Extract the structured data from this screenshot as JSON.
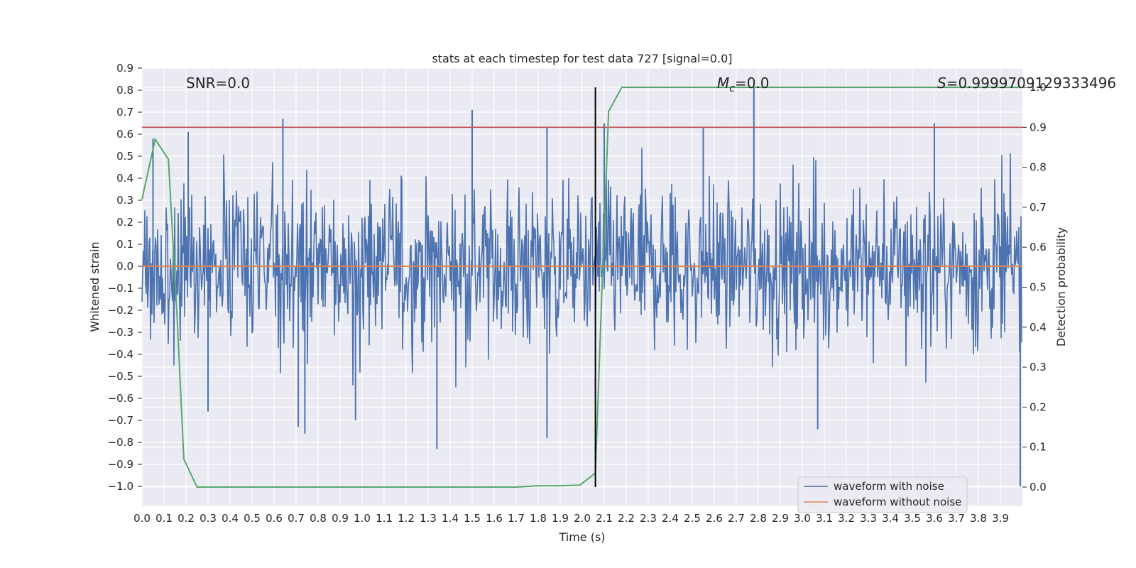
{
  "chart_data": {
    "type": "line",
    "title": "stats at each timestep for test data 727 [signal=0.0]",
    "xlabel": "Time (s)",
    "ylabel": "Whitened strain",
    "y2label": "Detection probability",
    "xlim": [
      0.0,
      4.0
    ],
    "ylim": [
      -1.1,
      0.9
    ],
    "y2lim": [
      -0.05,
      1.0
    ],
    "x_ticks": [
      "0.0",
      "0.1",
      "0.2",
      "0.3",
      "0.4",
      "0.5",
      "0.6",
      "0.7",
      "0.8",
      "0.9",
      "1.0",
      "1.1",
      "1.2",
      "1.3",
      "1.4",
      "1.5",
      "1.6",
      "1.7",
      "1.8",
      "1.9",
      "2.0",
      "2.1",
      "2.2",
      "2.3",
      "2.4",
      "2.5",
      "2.6",
      "2.7",
      "2.8",
      "2.9",
      "3.0",
      "3.1",
      "3.2",
      "3.3",
      "3.4",
      "3.5",
      "3.6",
      "3.7",
      "3.8",
      "3.9"
    ],
    "y_ticks": [
      "0.9",
      "0.8",
      "0.7",
      "0.6",
      "0.5",
      "0.4",
      "0.3",
      "0.2",
      "0.1",
      "0.0",
      "−0.1",
      "−0.2",
      "−0.3",
      "−0.4",
      "−0.5",
      "−0.6",
      "−0.7",
      "−0.8",
      "−0.9",
      "−1.0"
    ],
    "y2_ticks": [
      "1.0",
      "0.9",
      "0.8",
      "0.7",
      "0.6",
      "0.5",
      "0.4",
      "0.3",
      "0.2",
      "0.1",
      "0.0"
    ],
    "grid": true,
    "legend_position": "lower-right",
    "annotations": {
      "snr": "SNR=0.0",
      "mc_symbol": "M",
      "mc_sub": "c",
      "mc_value": "=0.0",
      "s_symbol": "S",
      "s_value": "=0.9999709129333496"
    },
    "noise_spikes": [
      {
        "x": 0.05,
        "y": 0.58
      },
      {
        "x": 0.21,
        "y": 0.61
      },
      {
        "x": 0.3,
        "y": -0.66
      },
      {
        "x": 0.64,
        "y": 0.67
      },
      {
        "x": 0.71,
        "y": -0.73
      },
      {
        "x": 0.74,
        "y": -0.76
      },
      {
        "x": 0.97,
        "y": -0.7
      },
      {
        "x": 1.34,
        "y": -0.83
      },
      {
        "x": 1.5,
        "y": 0.71
      },
      {
        "x": 1.84,
        "y": -0.78
      },
      {
        "x": 1.84,
        "y": 0.63
      },
      {
        "x": 2.1,
        "y": 0.65
      },
      {
        "x": 2.55,
        "y": 0.63
      },
      {
        "x": 2.78,
        "y": 0.81
      },
      {
        "x": 3.07,
        "y": -0.74
      },
      {
        "x": 3.6,
        "y": 0.65
      },
      {
        "x": 3.99,
        "y": -1.0
      }
    ],
    "noise_amplitude": 0.48,
    "threshold_line": {
      "axis": "y2",
      "value": 0.9,
      "color": "#c44e52"
    },
    "event_line": {
      "x": 2.06,
      "y2_from": 0.0,
      "y2_to": 1.0,
      "color": "#000000"
    },
    "series": [
      {
        "name": "waveform with noise",
        "axis": "y",
        "color": "#4c72b0",
        "style": "noise"
      },
      {
        "name": "waveform without noise",
        "axis": "y",
        "color": "#dd8452",
        "x": [
          0.0,
          4.0
        ],
        "y": [
          0.0,
          0.0
        ]
      },
      {
        "axis": "y2",
        "color": "#55a868",
        "x": [
          0.0,
          0.06,
          0.12,
          0.16,
          0.19,
          0.25,
          0.5,
          1.0,
          1.5,
          1.7,
          1.8,
          1.9,
          1.99,
          2.06,
          2.09,
          2.12,
          2.18,
          2.5,
          3.0,
          3.5,
          3.99
        ],
        "y": [
          0.72,
          0.87,
          0.82,
          0.42,
          0.07,
          0.0,
          0.0,
          0.0,
          0.0,
          0.0,
          0.003,
          0.003,
          0.005,
          0.035,
          0.5,
          0.94,
          1.0,
          1.0,
          1.0,
          1.0,
          1.0
        ]
      }
    ]
  },
  "colors": {
    "plot_background": "#eaeaf2",
    "grid": "#ffffff",
    "text": "#262626"
  }
}
